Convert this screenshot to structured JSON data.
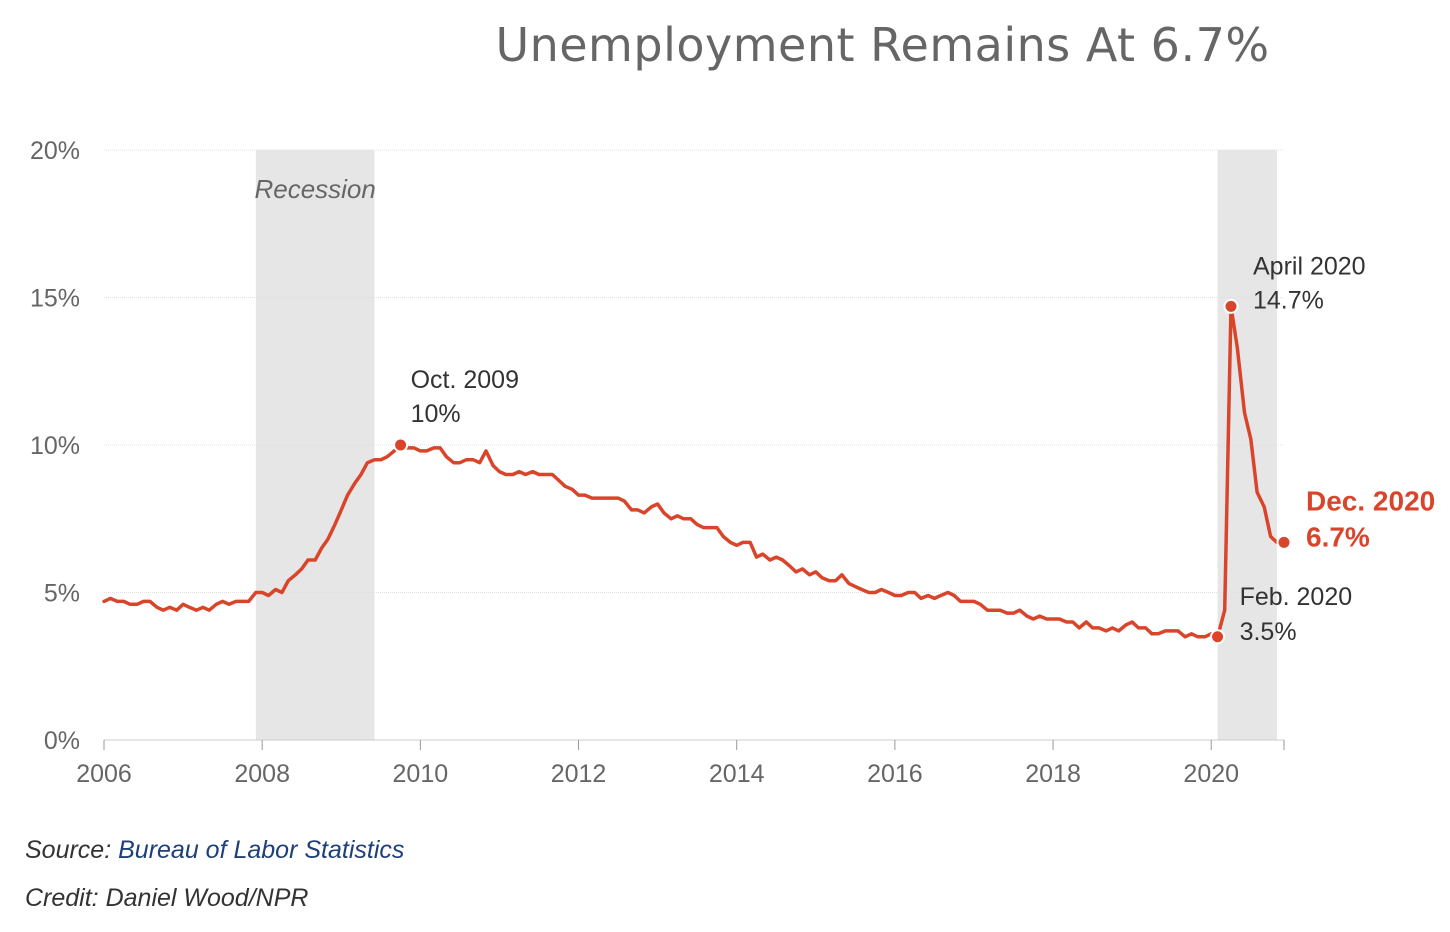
{
  "chart_data": {
    "type": "line",
    "title": "Unemployment Remains At 6.7%",
    "ylim": [
      0,
      20
    ],
    "xlim": [
      2006,
      2020.92
    ],
    "y_ticks": [
      "0%",
      "5%",
      "10%",
      "15%",
      "20%"
    ],
    "y_tick_values": [
      0,
      5,
      10,
      15,
      20
    ],
    "x_ticks": [
      "2006",
      "2008",
      "2010",
      "2012",
      "2014",
      "2016",
      "2018",
      "2020"
    ],
    "x_tick_values": [
      2006,
      2008,
      2010,
      2012,
      2014,
      2016,
      2018,
      2020
    ],
    "grid": true,
    "line_color": "#d9452b",
    "recession_color": "#e6e6e6",
    "recessions": [
      {
        "start": 2007.92,
        "end": 2009.42,
        "label": "Recession"
      },
      {
        "start": 2020.08,
        "end": 2020.83,
        "label": ""
      }
    ],
    "series": [
      {
        "x": [
          2006.0,
          2006.08,
          2006.17,
          2006.25,
          2006.33,
          2006.42,
          2006.5,
          2006.58,
          2006.67,
          2006.75,
          2006.83,
          2006.92,
          2007.0,
          2007.08,
          2007.17,
          2007.25,
          2007.33,
          2007.42,
          2007.5,
          2007.58,
          2007.67,
          2007.75,
          2007.83,
          2007.92,
          2008.0,
          2008.08,
          2008.17,
          2008.25,
          2008.33,
          2008.42,
          2008.5,
          2008.58,
          2008.67,
          2008.75,
          2008.83,
          2008.92,
          2009.0,
          2009.08,
          2009.17,
          2009.25,
          2009.33,
          2009.42,
          2009.5,
          2009.58,
          2009.67,
          2009.75,
          2009.83,
          2009.92,
          2010.0,
          2010.08,
          2010.17,
          2010.25,
          2010.33,
          2010.42,
          2010.5,
          2010.58,
          2010.67,
          2010.75,
          2010.83,
          2010.92,
          2011.0,
          2011.08,
          2011.17,
          2011.25,
          2011.33,
          2011.42,
          2011.5,
          2011.58,
          2011.67,
          2011.75,
          2011.83,
          2011.92,
          2012.0,
          2012.08,
          2012.17,
          2012.25,
          2012.33,
          2012.42,
          2012.5,
          2012.58,
          2012.67,
          2012.75,
          2012.83,
          2012.92,
          2013.0,
          2013.08,
          2013.17,
          2013.25,
          2013.33,
          2013.42,
          2013.5,
          2013.58,
          2013.67,
          2013.75,
          2013.83,
          2013.92,
          2014.0,
          2014.08,
          2014.17,
          2014.25,
          2014.33,
          2014.42,
          2014.5,
          2014.58,
          2014.67,
          2014.75,
          2014.83,
          2014.92,
          2015.0,
          2015.08,
          2015.17,
          2015.25,
          2015.33,
          2015.42,
          2015.5,
          2015.58,
          2015.67,
          2015.75,
          2015.83,
          2015.92,
          2016.0,
          2016.08,
          2016.17,
          2016.25,
          2016.33,
          2016.42,
          2016.5,
          2016.58,
          2016.67,
          2016.75,
          2016.83,
          2016.92,
          2017.0,
          2017.08,
          2017.17,
          2017.25,
          2017.33,
          2017.42,
          2017.5,
          2017.58,
          2017.67,
          2017.75,
          2017.83,
          2017.92,
          2018.0,
          2018.08,
          2018.17,
          2018.25,
          2018.33,
          2018.42,
          2018.5,
          2018.58,
          2018.67,
          2018.75,
          2018.83,
          2018.92,
          2019.0,
          2019.08,
          2019.17,
          2019.25,
          2019.33,
          2019.42,
          2019.5,
          2019.58,
          2019.67,
          2019.75,
          2019.83,
          2019.92,
          2020.0,
          2020.08,
          2020.17,
          2020.25,
          2020.33,
          2020.42,
          2020.5,
          2020.58,
          2020.67,
          2020.75,
          2020.83,
          2020.92
        ],
        "y": [
          4.7,
          4.8,
          4.7,
          4.7,
          4.6,
          4.6,
          4.7,
          4.7,
          4.5,
          4.4,
          4.5,
          4.4,
          4.6,
          4.5,
          4.4,
          4.5,
          4.4,
          4.6,
          4.7,
          4.6,
          4.7,
          4.7,
          4.7,
          5.0,
          5.0,
          4.9,
          5.1,
          5.0,
          5.4,
          5.6,
          5.8,
          6.1,
          6.1,
          6.5,
          6.8,
          7.3,
          7.8,
          8.3,
          8.7,
          9.0,
          9.4,
          9.5,
          9.5,
          9.6,
          9.8,
          10.0,
          9.9,
          9.9,
          9.8,
          9.8,
          9.9,
          9.9,
          9.6,
          9.4,
          9.4,
          9.5,
          9.5,
          9.4,
          9.8,
          9.3,
          9.1,
          9.0,
          9.0,
          9.1,
          9.0,
          9.1,
          9.0,
          9.0,
          9.0,
          8.8,
          8.6,
          8.5,
          8.3,
          8.3,
          8.2,
          8.2,
          8.2,
          8.2,
          8.2,
          8.1,
          7.8,
          7.8,
          7.7,
          7.9,
          8.0,
          7.7,
          7.5,
          7.6,
          7.5,
          7.5,
          7.3,
          7.2,
          7.2,
          7.2,
          6.9,
          6.7,
          6.6,
          6.7,
          6.7,
          6.2,
          6.3,
          6.1,
          6.2,
          6.1,
          5.9,
          5.7,
          5.8,
          5.6,
          5.7,
          5.5,
          5.4,
          5.4,
          5.6,
          5.3,
          5.2,
          5.1,
          5.0,
          5.0,
          5.1,
          5.0,
          4.9,
          4.9,
          5.0,
          5.0,
          4.8,
          4.9,
          4.8,
          4.9,
          5.0,
          4.9,
          4.7,
          4.7,
          4.7,
          4.6,
          4.4,
          4.4,
          4.4,
          4.3,
          4.3,
          4.4,
          4.2,
          4.1,
          4.2,
          4.1,
          4.1,
          4.1,
          4.0,
          4.0,
          3.8,
          4.0,
          3.8,
          3.8,
          3.7,
          3.8,
          3.7,
          3.9,
          4.0,
          3.8,
          3.8,
          3.6,
          3.6,
          3.7,
          3.7,
          3.7,
          3.5,
          3.6,
          3.5,
          3.5,
          3.6,
          3.5,
          4.4,
          14.7,
          13.3,
          11.1,
          10.2,
          8.4,
          7.9,
          6.9,
          6.7,
          6.7
        ]
      }
    ],
    "highlight_points": [
      {
        "x": 2009.75,
        "y": 10.0,
        "label_line1": "Oct. 2009",
        "label_line2": "10%",
        "style": "normal"
      },
      {
        "x": 2020.25,
        "y": 14.7,
        "label_line1": "April 2020",
        "label_line2": "14.7%",
        "style": "normal"
      },
      {
        "x": 2020.08,
        "y": 3.5,
        "label_line1": "Feb. 2020",
        "label_line2": "3.5%",
        "style": "normal"
      },
      {
        "x": 2020.92,
        "y": 6.7,
        "label_line1": "Dec. 2020",
        "label_line2": "6.7%",
        "style": "highlight"
      }
    ]
  },
  "footer": {
    "source_label": "Source: ",
    "source_link": "Bureau of Labor Statistics",
    "credit": "Credit: Daniel Wood/NPR"
  }
}
